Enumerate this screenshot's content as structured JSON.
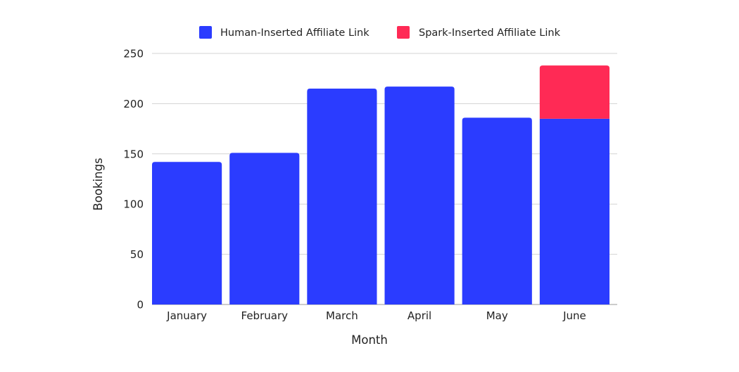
{
  "chart_data": {
    "type": "bar",
    "stacked": true,
    "categories": [
      "January",
      "February",
      "March",
      "April",
      "May",
      "June"
    ],
    "series": [
      {
        "name": "Human-Inserted Affiliate Link",
        "color": "#2b3cff",
        "values": [
          142,
          151,
          215,
          217,
          186,
          185
        ]
      },
      {
        "name": "Spark-Inserted Affiliate Link",
        "color": "#ff2a55",
        "values": [
          0,
          0,
          0,
          0,
          0,
          53
        ]
      }
    ],
    "xlabel": "Month",
    "ylabel": "Bookings",
    "ylim": [
      0,
      250
    ],
    "yticks": [
      0,
      50,
      100,
      150,
      200,
      250
    ],
    "grid": true,
    "legend": "top-center"
  }
}
